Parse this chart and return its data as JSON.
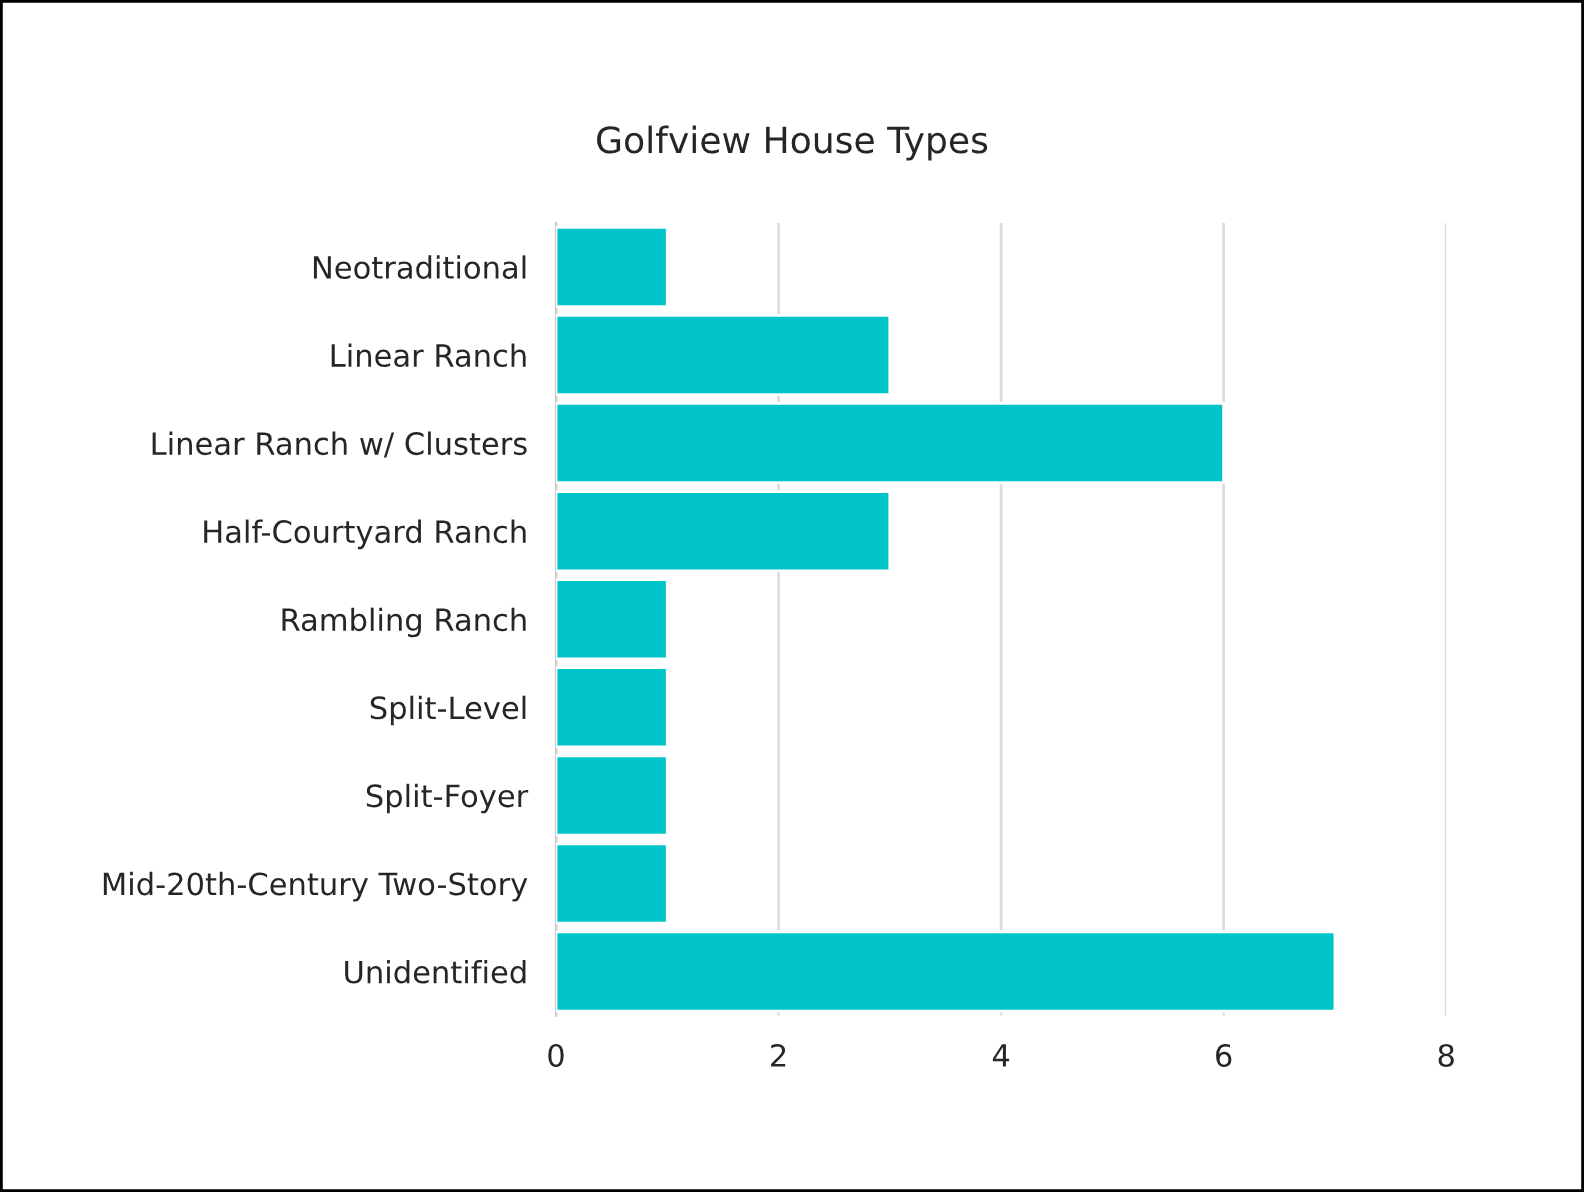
{
  "chart_data": {
    "type": "bar",
    "orientation": "horizontal",
    "title": "Golfview House Types",
    "categories": [
      "Neotraditional",
      "Linear Ranch",
      "Linear Ranch w/ Clusters",
      "Half-Courtyard Ranch",
      "Rambling Ranch",
      "Split-Level",
      "Split-Foyer",
      "Mid-20th-Century Two-Story",
      "Unidentified"
    ],
    "values": [
      1,
      3,
      6,
      3,
      1,
      1,
      1,
      1,
      7
    ],
    "color": "#00c4c8",
    "xlim": [
      0,
      8
    ],
    "xticks": [
      0,
      2,
      4,
      6,
      8
    ],
    "grid": "x",
    "legend": false
  }
}
